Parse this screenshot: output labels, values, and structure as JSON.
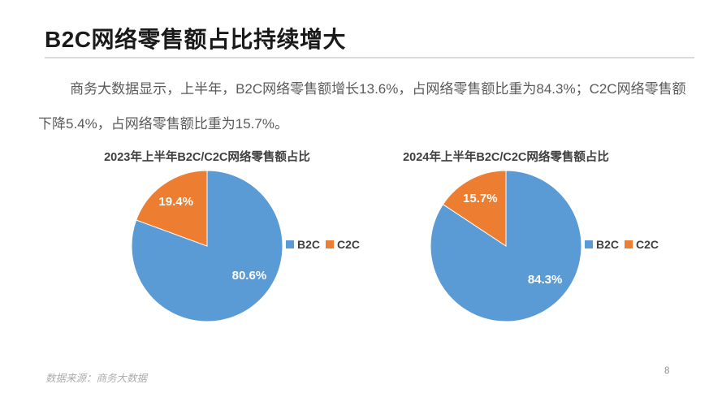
{
  "page": {
    "title": "B2C网络零售额占比持续增大",
    "body": "商务大数据显示，上半年，B2C网络零售额增长13.6%，占网络零售额比重为84.3%；C2C网络零售额下降5.4%，占网络零售额比重为15.7%。",
    "source_note": "数据来源：商务大数据",
    "page_number": "8"
  },
  "colors": {
    "b2c_blue": "#5B9BD5",
    "c2c_orange": "#ED7D31",
    "title_text": "#1a1a1a",
    "body_text": "#5a5a5a",
    "chart_title_text": "#404040",
    "divider": "#d9d9d9"
  },
  "chart_data": [
    {
      "type": "pie",
      "title": "2023年上半年B2C/C2C网络零售额占比",
      "labels": [
        "B2C",
        "C2C"
      ],
      "values": [
        80.6,
        19.4
      ],
      "data_labels": [
        "80.6%",
        "19.4%"
      ],
      "colors": [
        "#5B9BD5",
        "#ED7D31"
      ],
      "legend_position": "right",
      "start_angle_deg": 0,
      "direction": "clockwise",
      "data_label_color": "#ffffff"
    },
    {
      "type": "pie",
      "title": "2024年上半年B2C/C2C网络零售额占比",
      "labels": [
        "B2C",
        "C2C"
      ],
      "values": [
        84.3,
        15.7
      ],
      "data_labels": [
        "84.3%",
        "15.7%"
      ],
      "colors": [
        "#5B9BD5",
        "#ED7D31"
      ],
      "legend_position": "right",
      "start_angle_deg": 0,
      "direction": "clockwise",
      "data_label_color": "#ffffff"
    }
  ]
}
